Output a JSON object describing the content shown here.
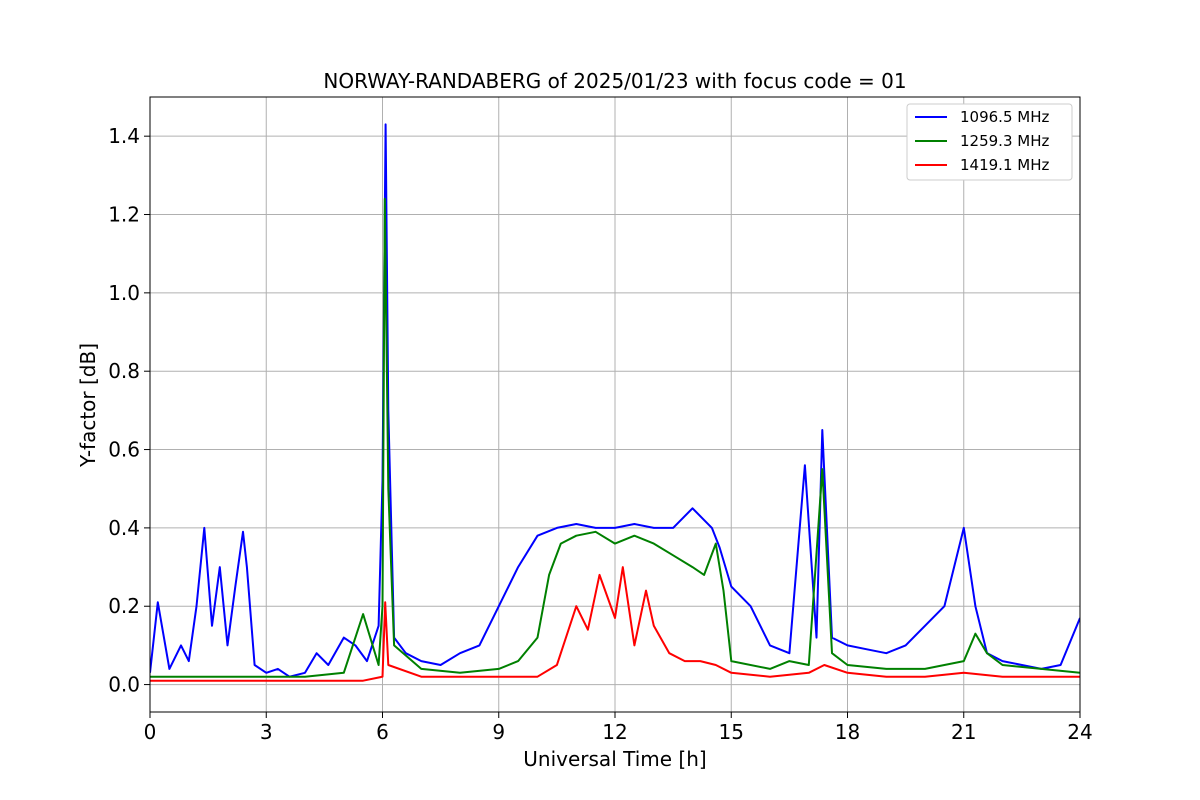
{
  "chart_data": {
    "type": "line",
    "title": "NORWAY-RANDABERG of 2025/01/23 with focus code = 01",
    "xlabel": "Universal Time [h]",
    "ylabel": "Y-factor [dB]",
    "xlim": [
      0,
      24
    ],
    "ylim": [
      -0.07,
      1.5
    ],
    "xticks": [
      0,
      3,
      6,
      9,
      12,
      15,
      18,
      21,
      24
    ],
    "yticks": [
      0.0,
      0.2,
      0.4,
      0.6,
      0.8,
      1.0,
      1.2,
      1.4
    ],
    "ytick_labels": [
      "0.0",
      "0.2",
      "0.4",
      "0.6",
      "0.8",
      "1.0",
      "1.2",
      "1.4"
    ],
    "grid": true,
    "legend_position": "top-right",
    "series": [
      {
        "name": "1096.5 MHz",
        "color": "#0000ff",
        "x": [
          0.0,
          0.2,
          0.5,
          0.8,
          1.0,
          1.2,
          1.4,
          1.6,
          1.8,
          2.0,
          2.2,
          2.4,
          2.5,
          2.7,
          3.0,
          3.3,
          3.6,
          4.0,
          4.3,
          4.6,
          5.0,
          5.3,
          5.6,
          5.9,
          6.0,
          6.08,
          6.15,
          6.3,
          6.6,
          7.0,
          7.5,
          8.0,
          8.5,
          9.0,
          9.5,
          10.0,
          10.5,
          11.0,
          11.5,
          12.0,
          12.5,
          13.0,
          13.5,
          14.0,
          14.5,
          14.7,
          15.0,
          15.5,
          16.0,
          16.5,
          16.9,
          17.2,
          17.35,
          17.6,
          18.0,
          18.5,
          19.0,
          19.5,
          20.0,
          20.5,
          21.0,
          21.3,
          21.6,
          22.0,
          22.5,
          23.0,
          23.5,
          24.0
        ],
        "values": [
          0.03,
          0.21,
          0.04,
          0.1,
          0.06,
          0.2,
          0.4,
          0.15,
          0.3,
          0.1,
          0.25,
          0.39,
          0.3,
          0.05,
          0.03,
          0.04,
          0.02,
          0.03,
          0.08,
          0.05,
          0.12,
          0.1,
          0.06,
          0.15,
          0.52,
          1.43,
          0.7,
          0.12,
          0.08,
          0.06,
          0.05,
          0.08,
          0.1,
          0.2,
          0.3,
          0.38,
          0.4,
          0.41,
          0.4,
          0.4,
          0.41,
          0.4,
          0.4,
          0.45,
          0.4,
          0.35,
          0.25,
          0.2,
          0.1,
          0.08,
          0.56,
          0.12,
          0.65,
          0.12,
          0.1,
          0.09,
          0.08,
          0.1,
          0.15,
          0.2,
          0.4,
          0.2,
          0.08,
          0.06,
          0.05,
          0.04,
          0.05,
          0.17
        ]
      },
      {
        "name": "1259.3 MHz",
        "color": "#008000",
        "x": [
          0.0,
          1.0,
          2.0,
          3.0,
          4.0,
          5.0,
          5.5,
          5.9,
          6.0,
          6.06,
          6.15,
          6.3,
          7.0,
          8.0,
          9.0,
          9.5,
          10.0,
          10.3,
          10.6,
          11.0,
          11.5,
          12.0,
          12.5,
          13.0,
          13.5,
          14.0,
          14.3,
          14.6,
          14.8,
          15.0,
          16.0,
          16.5,
          17.0,
          17.35,
          17.6,
          18.0,
          19.0,
          20.0,
          20.5,
          21.0,
          21.3,
          21.6,
          22.0,
          23.0,
          24.0
        ],
        "values": [
          0.02,
          0.02,
          0.02,
          0.02,
          0.02,
          0.03,
          0.18,
          0.05,
          0.2,
          1.24,
          0.5,
          0.1,
          0.04,
          0.03,
          0.04,
          0.06,
          0.12,
          0.28,
          0.36,
          0.38,
          0.39,
          0.36,
          0.38,
          0.36,
          0.33,
          0.3,
          0.28,
          0.36,
          0.24,
          0.06,
          0.04,
          0.06,
          0.05,
          0.55,
          0.08,
          0.05,
          0.04,
          0.04,
          0.05,
          0.06,
          0.13,
          0.08,
          0.05,
          0.04,
          0.03
        ]
      },
      {
        "name": "1419.1 MHz",
        "color": "#ff0000",
        "x": [
          0.0,
          2.0,
          4.0,
          5.5,
          6.0,
          6.07,
          6.15,
          7.0,
          8.0,
          9.0,
          10.0,
          10.5,
          11.0,
          11.3,
          11.6,
          12.0,
          12.2,
          12.5,
          12.8,
          13.0,
          13.4,
          13.8,
          14.2,
          14.6,
          15.0,
          16.0,
          17.0,
          17.4,
          18.0,
          19.0,
          20.0,
          21.0,
          22.0,
          23.0,
          24.0
        ],
        "values": [
          0.01,
          0.01,
          0.01,
          0.01,
          0.02,
          0.21,
          0.05,
          0.02,
          0.02,
          0.02,
          0.02,
          0.05,
          0.2,
          0.14,
          0.28,
          0.17,
          0.3,
          0.1,
          0.24,
          0.15,
          0.08,
          0.06,
          0.06,
          0.05,
          0.03,
          0.02,
          0.03,
          0.05,
          0.03,
          0.02,
          0.02,
          0.03,
          0.02,
          0.02,
          0.02
        ]
      }
    ]
  }
}
